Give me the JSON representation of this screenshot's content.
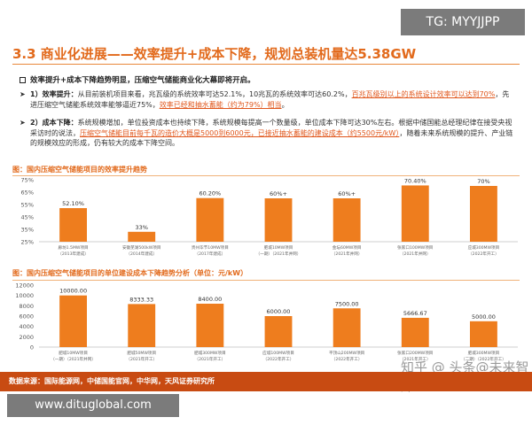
{
  "watermarks": {
    "top_right": "TG: MYYJJPP",
    "bottom_left": "www.dituglobal.com",
    "zhihu": "知乎 @ 头条@未来智库"
  },
  "slide": {
    "title": "3.3 商业化进展——效率提升+成本下降，规划总装机量达5.38GW",
    "main_bullet": "效率提升+成本下降趋势明显，压缩空气储能商业化大幕即将开启。",
    "points": [
      {
        "lead": "1）效率提升：",
        "text_a": "从目前装机项目来看，兆瓦级的系统效率可达52.1%，10兆瓦的系统效率可达60.2%，",
        "highlight_a": "百兆瓦级别以上的系统设计效率可以达到70%",
        "text_b": "，先进压缩空气储能系统效率能够逼近75%，",
        "highlight_b": "效率已经和抽水蓄能（约为79%）相当",
        "text_c": "。"
      },
      {
        "lead": "2）成本下降：",
        "text_a": "系统规模增加，单位投资成本也持续下降，系统规模每提高一个数量级，单位成本下降可达30%左右。根据中储国能总经理纪律在接受央视采访时的说法，",
        "highlight_a": "压缩空气储能目前每千瓦的造价大概是5000到6000元，已接近抽水蓄能的建设成本（约5500元/kW）",
        "text_b": "，随着未来系统规模的提升、产业链的规模效应的形成，仍有较大的成本下降空间。"
      }
    ]
  },
  "chart_data": [
    {
      "type": "bar",
      "title": "图：国内压缩空气储能项目的效率提升趋势",
      "categories": [
        "廊坊1.5MW项目（2013年建成）",
        "安徽芜湖500kW项目（2014年建成）",
        "贵州毕节10MW项目（2017年建成）",
        "肥城10MW项目（一期）（2021年并网）",
        "金坛60MW项目（2021年并网）",
        "张家口100MW项目（2021年并网）",
        "应城300MW项目（2022年开工）"
      ],
      "values": [
        52.1,
        33,
        60.2,
        60,
        60,
        70.4,
        70
      ],
      "data_labels": [
        "52.10%",
        "33%",
        "60.20%",
        "60%+",
        "60%+",
        "70.40%",
        "70%"
      ],
      "ylim": [
        25,
        75
      ],
      "yticks": [
        "25%",
        "35%",
        "45%",
        "55%",
        "65%",
        "75%"
      ],
      "grid": false,
      "color": "#ee7d1e"
    },
    {
      "type": "bar",
      "title": "图：国内压缩空气储能项目的单位建设成本下降趋势分析（单位：元/kW）",
      "categories": [
        "肥城10MW项目（一期）（2021年并网）",
        "肥城50MW项目（2021年开工）",
        "肥城300MW项目（2021年开工）",
        "应城100MW项目（2022年开工）",
        "平顶山200MW项目（2022年开工）",
        "张家口200MW项目（2021年开工）",
        "肥城300MW项目（二期）（2022年开工）"
      ],
      "values": [
        10000,
        8333.33,
        8400,
        6000,
        7500,
        5666.67,
        5000
      ],
      "data_labels": [
        "10000.00",
        "8333.33",
        "8400.00",
        "6000.00",
        "7500.00",
        "5666.67",
        "5000.00"
      ],
      "ylim": [
        0,
        12000
      ],
      "yticks": [
        "0",
        "2000",
        "4000",
        "6000",
        "8000",
        "10000",
        "12000"
      ],
      "grid": false,
      "color": "#ee7d1e"
    }
  ],
  "footer": {
    "source": "数据来源：国际能源网，中储国能官网，中华网，天风证券研究所"
  }
}
